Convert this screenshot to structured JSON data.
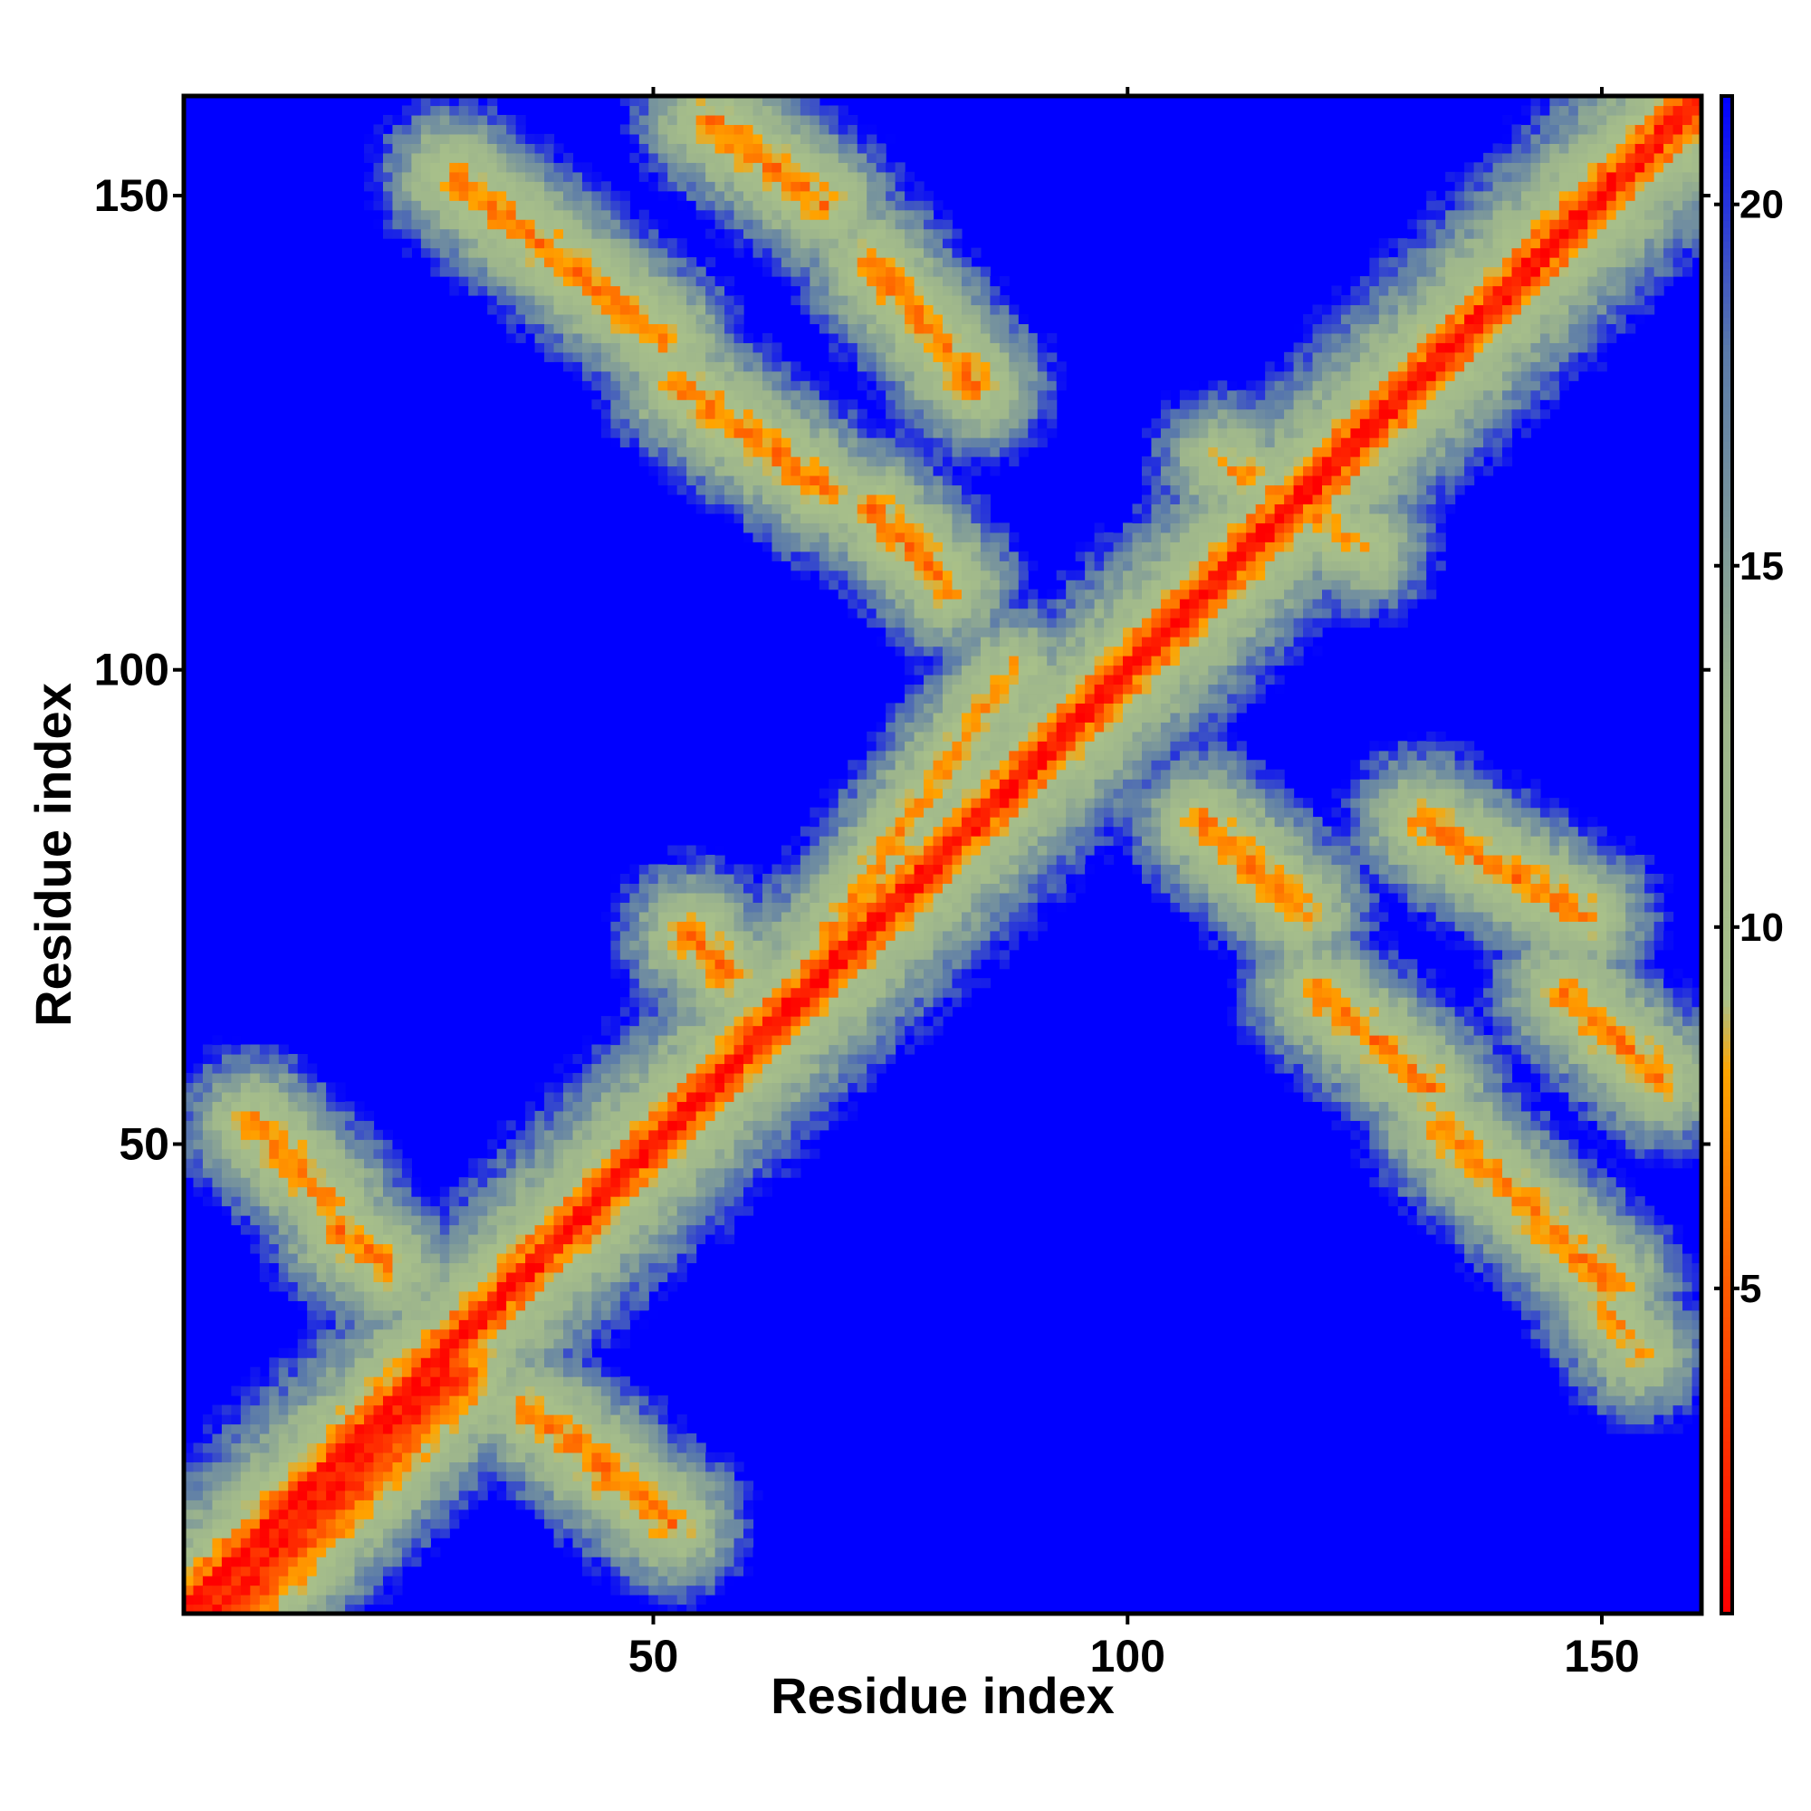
{
  "chart_data": {
    "type": "heatmap",
    "title": "",
    "xlabel": "Residue index",
    "ylabel": "Residue index",
    "n_residues": 160,
    "xlim": [
      1,
      160
    ],
    "ylim": [
      1,
      160
    ],
    "x_ticks": [
      50,
      100,
      150
    ],
    "y_ticks": [
      50,
      100,
      150
    ],
    "colorbar": {
      "ticks": [
        5,
        10,
        15,
        20
      ],
      "range": [
        0.5,
        21.5
      ],
      "stops": [
        {
          "value": 0.5,
          "color": "#ff0000"
        },
        {
          "value": 5,
          "color": "#ff5a00"
        },
        {
          "value": 8,
          "color": "#ffa500"
        },
        {
          "value": 9,
          "color": "#a8c08a"
        },
        {
          "value": 13,
          "color": "#9db58c"
        },
        {
          "value": 18,
          "color": "#5a7aaa"
        },
        {
          "value": 21.5,
          "color": "#0000ff"
        }
      ]
    },
    "cutoff_color": "#0000ff",
    "contact_bands_lower_triangle": [
      {
        "x_range": [
          4,
          28
        ],
        "y_range": [
          1,
          26
        ],
        "direction": "diagonal",
        "min_distance": 1
      },
      {
        "x_range": [
          8,
          16
        ],
        "y_range": [
          52,
          44
        ],
        "direction": "anti-diagonal",
        "min_distance": 6
      },
      {
        "x_range": [
          17,
          22
        ],
        "y_range": [
          41,
          37
        ],
        "direction": "anti-diagonal",
        "min_distance": 6
      },
      {
        "x_range": [
          37,
          45
        ],
        "y_range": [
          22,
          16
        ],
        "direction": "anti-diagonal",
        "min_distance": 6
      },
      {
        "x_range": [
          44,
          52
        ],
        "y_range": [
          16,
          10
        ],
        "direction": "anti-diagonal",
        "min_distance": 6
      },
      {
        "x_range": [
          54,
          58
        ],
        "y_range": [
          72,
          68
        ],
        "direction": "anti-diagonal",
        "min_distance": 6
      },
      {
        "x_range": [
          60,
          88
        ],
        "y_range": [
          60,
          100
        ],
        "direction": "diagonal",
        "min_distance": 7
      },
      {
        "x_range": [
          108,
          118
        ],
        "y_range": [
          84,
          75
        ],
        "direction": "anti-diagonal",
        "min_distance": 6
      },
      {
        "x_range": [
          131,
          148
        ],
        "y_range": [
          84,
          74
        ],
        "direction": "anti-diagonal",
        "min_distance": 6
      },
      {
        "x_range": [
          120,
          132
        ],
        "y_range": [
          66,
          56
        ],
        "direction": "anti-diagonal",
        "min_distance": 6
      },
      {
        "x_range": [
          146,
          156
        ],
        "y_range": [
          66,
          57
        ],
        "direction": "anti-diagonal",
        "min_distance": 6
      },
      {
        "x_range": [
          133,
          151
        ],
        "y_range": [
          52,
          35
        ],
        "direction": "anti-diagonal",
        "min_distance": 6
      },
      {
        "x_range": [
          150,
          154
        ],
        "y_range": [
          33,
          28
        ],
        "direction": "anti-diagonal",
        "min_distance": 7
      }
    ],
    "contact_bands_upper_triangle": [
      {
        "x_range": [
          29,
          51
        ],
        "y_range": [
          152,
          135
        ],
        "direction": "anti-diagonal",
        "min_distance": 6
      },
      {
        "x_range": [
          53,
          68
        ],
        "y_range": [
          130,
          119
        ],
        "direction": "anti-diagonal",
        "min_distance": 6
      },
      {
        "x_range": [
          56,
          68
        ],
        "y_range": [
          158,
          149
        ],
        "direction": "anti-diagonal",
        "min_distance": 6
      },
      {
        "x_range": [
          73,
          84
        ],
        "y_range": [
          143,
          130
        ],
        "direction": "anti-diagonal",
        "min_distance": 6
      },
      {
        "x_range": [
          73,
          81
        ],
        "y_range": [
          117,
          109
        ],
        "direction": "anti-diagonal",
        "min_distance": 6
      },
      {
        "x_range": [
          110,
          125
        ],
        "y_range": [
          122,
          113
        ],
        "direction": "anti-diagonal",
        "min_distance": 7
      }
    ]
  }
}
